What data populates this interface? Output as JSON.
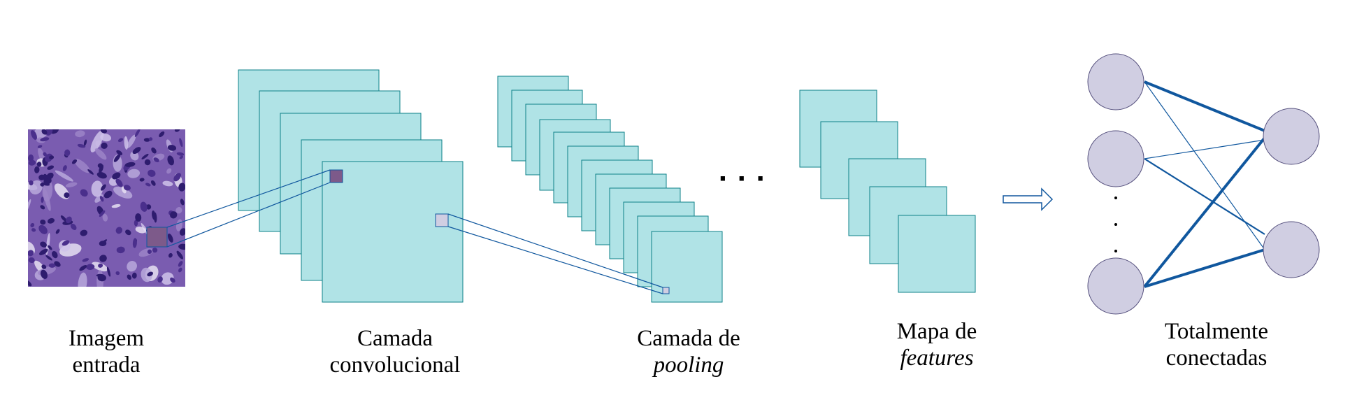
{
  "stages": {
    "input": {
      "line1": "Imagem",
      "line2": "entrada"
    },
    "conv": {
      "line1": "Camada",
      "line2": "convolucional"
    },
    "pool": {
      "line1": "Camada de",
      "line2": "pooling"
    },
    "features": {
      "line1": "Mapa de",
      "line2": "features"
    },
    "fc": {
      "line1": "Totalmente",
      "line2": "conectadas"
    }
  },
  "colors": {
    "feature_map_fill": "#b0e3e6",
    "feature_map_stroke": "#0e8088",
    "connector": "#10579e",
    "neuron_fill": "#d0cee2",
    "neuron_stroke": "#56517e",
    "tissue_base": "#7a5cb0",
    "nucleus": "#2e1c6e",
    "kernel_dark": "#7d5a8a",
    "kernel_light": "#d0cee2"
  },
  "ellipsis_between_layers": "· · ·",
  "arrow_icon": "right-arrow-icon",
  "neurons": {
    "input_count_shown": 3,
    "output_count": 2,
    "vertical_dots": "⋮"
  }
}
